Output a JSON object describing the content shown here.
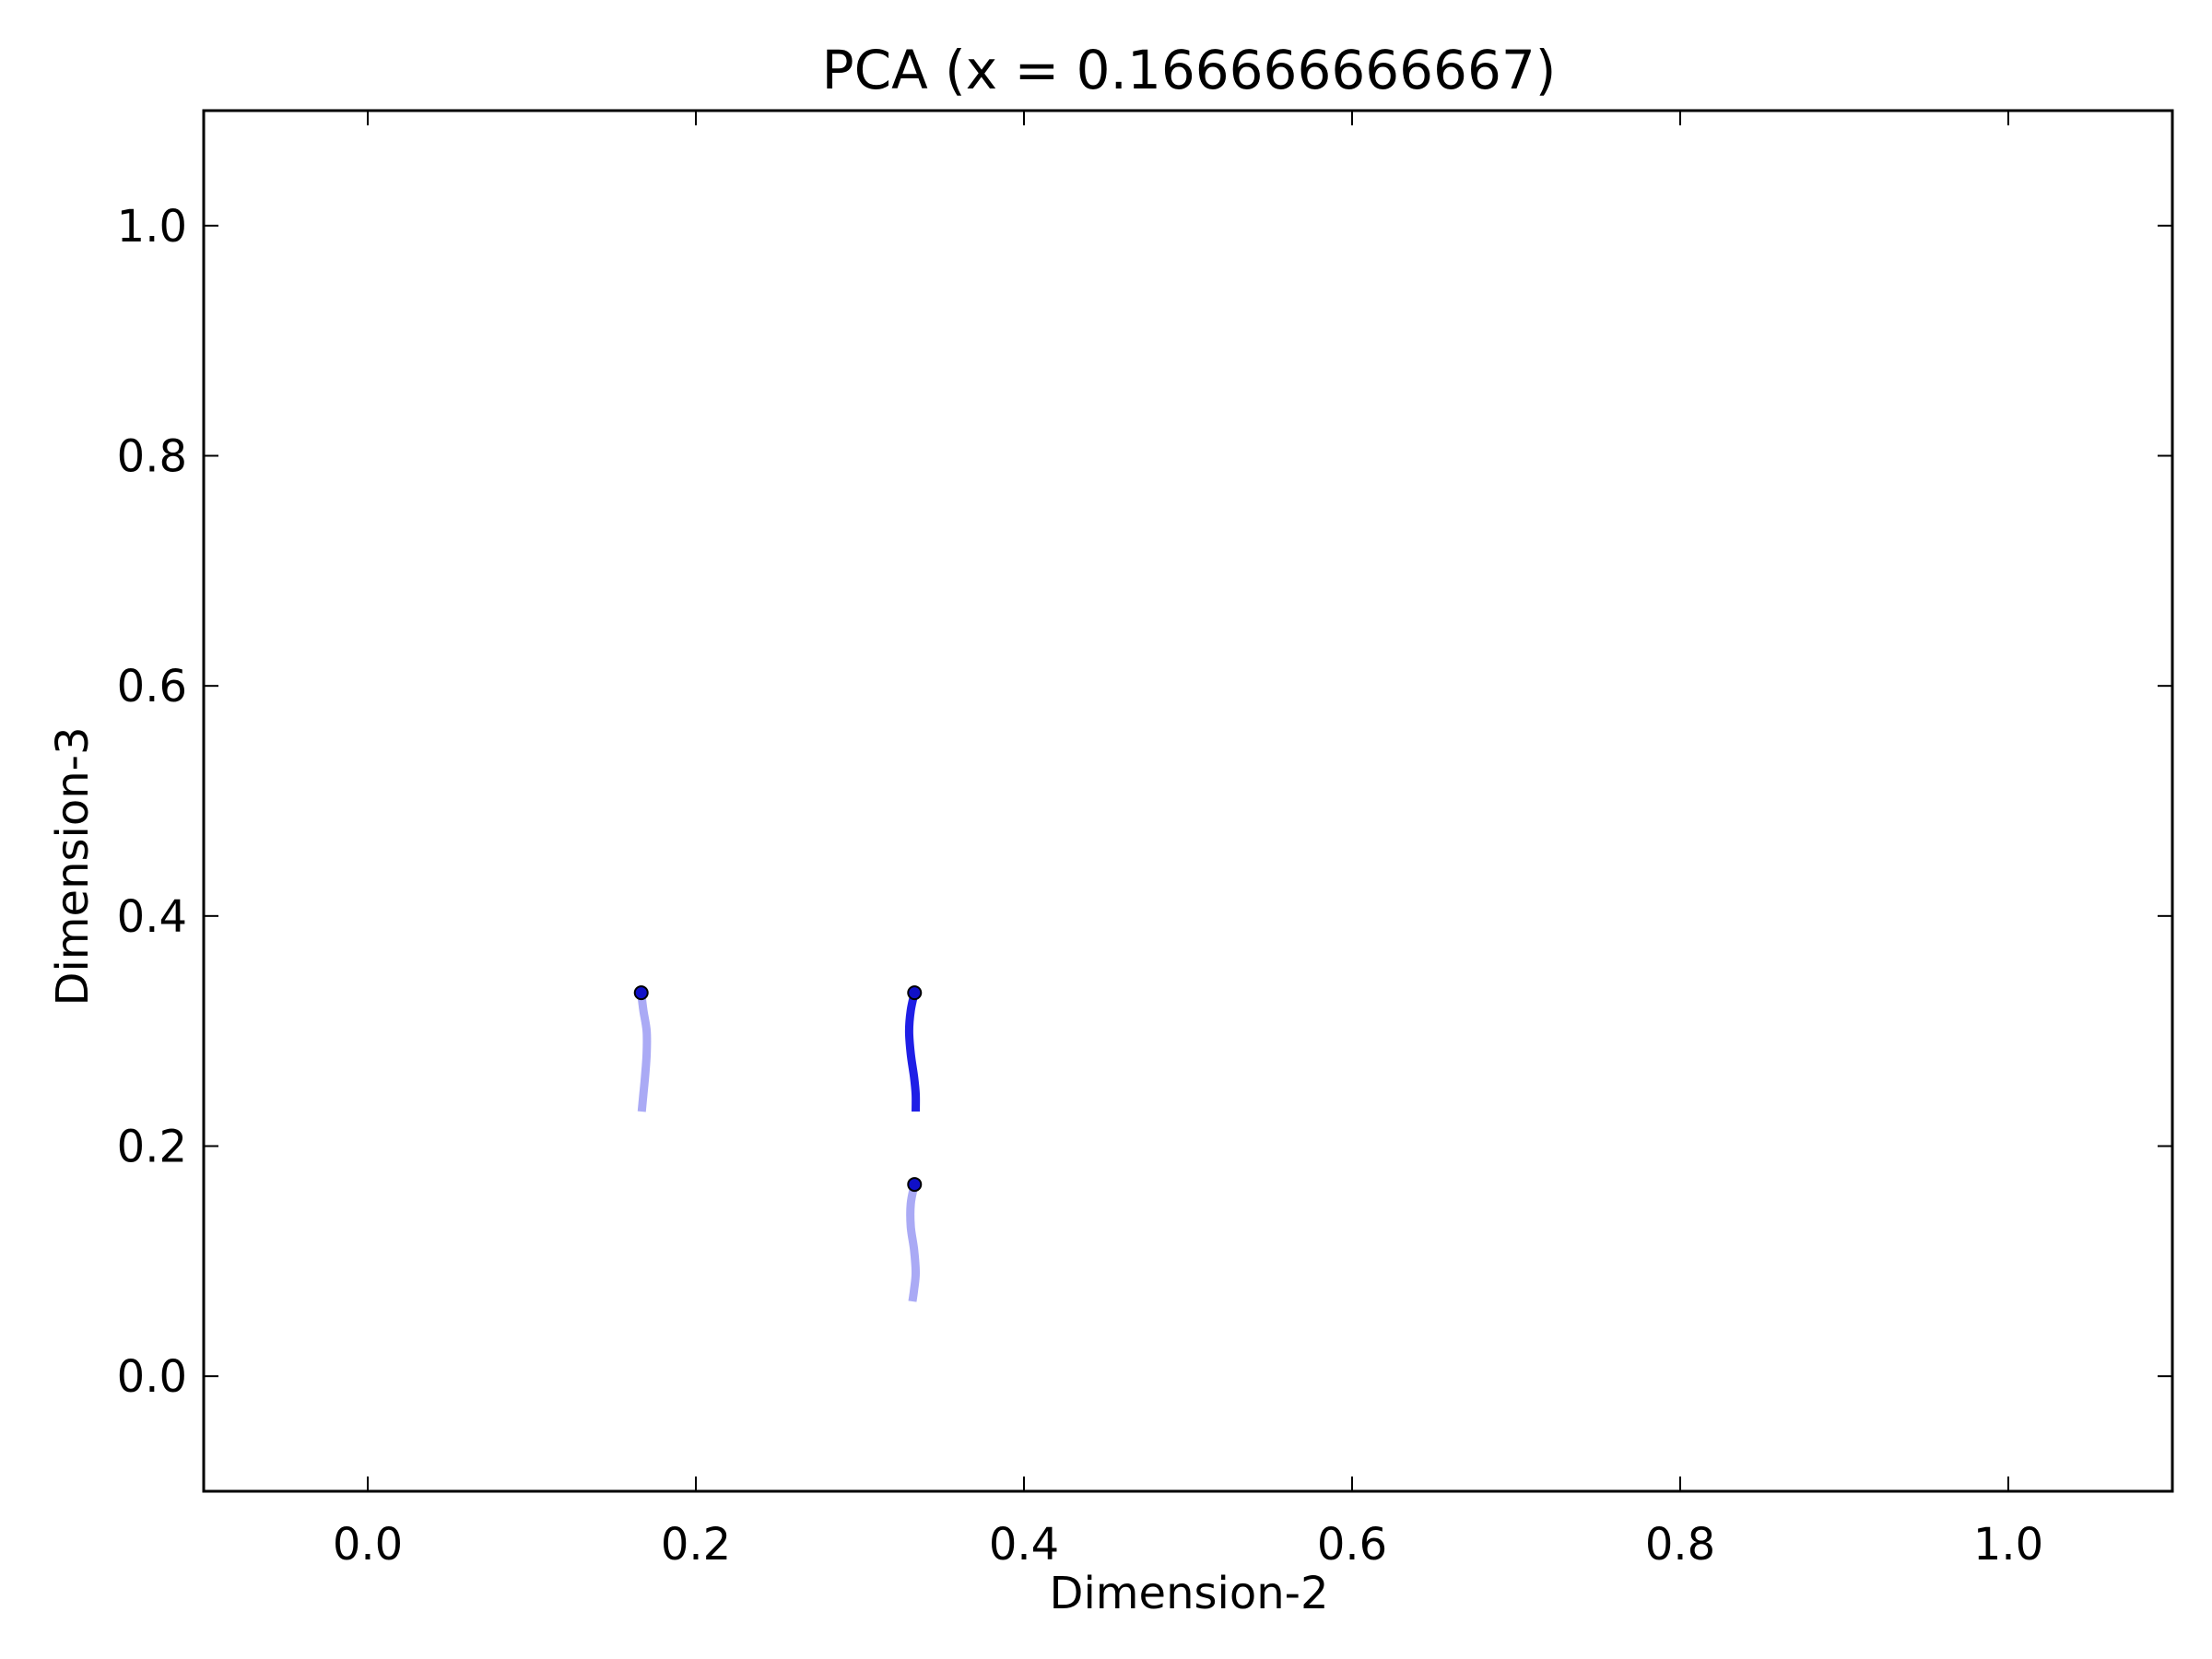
{
  "chart_data": {
    "type": "line",
    "title": "PCA (x = 0.166666666667)",
    "xlabel": "Dimension-2",
    "ylabel": "Dimension-3",
    "xlim": [
      -0.1,
      1.1
    ],
    "ylim": [
      -0.1,
      1.1
    ],
    "xticks": [
      "0.0",
      "0.2",
      "0.4",
      "0.6",
      "0.8",
      "1.0"
    ],
    "yticks": [
      "0.0",
      "0.2",
      "0.4",
      "0.6",
      "0.8",
      "1.0"
    ],
    "grid": false,
    "series": [
      {
        "color": "#aaaaf5",
        "points": [
          [
            0.1667,
            0.3333
          ],
          [
            0.168,
            0.318
          ],
          [
            0.17,
            0.3
          ],
          [
            0.17,
            0.28
          ],
          [
            0.169,
            0.26
          ],
          [
            0.168,
            0.245
          ],
          [
            0.167,
            0.23
          ]
        ],
        "marker": [
          0.1667,
          0.3333
        ]
      },
      {
        "color": "#1f1fe6",
        "points": [
          [
            0.3333,
            0.3333
          ],
          [
            0.331,
            0.318
          ],
          [
            0.33,
            0.3
          ],
          [
            0.331,
            0.28
          ],
          [
            0.333,
            0.26
          ],
          [
            0.334,
            0.245
          ],
          [
            0.334,
            0.23
          ]
        ],
        "marker": [
          0.3333,
          0.3333
        ]
      },
      {
        "color": "#aaaaf5",
        "points": [
          [
            0.3333,
            0.1667
          ],
          [
            0.331,
            0.15
          ],
          [
            0.331,
            0.13
          ],
          [
            0.333,
            0.11
          ],
          [
            0.334,
            0.09
          ],
          [
            0.333,
            0.075
          ],
          [
            0.332,
            0.065
          ]
        ],
        "marker": [
          0.3333,
          0.1667
        ]
      }
    ]
  }
}
